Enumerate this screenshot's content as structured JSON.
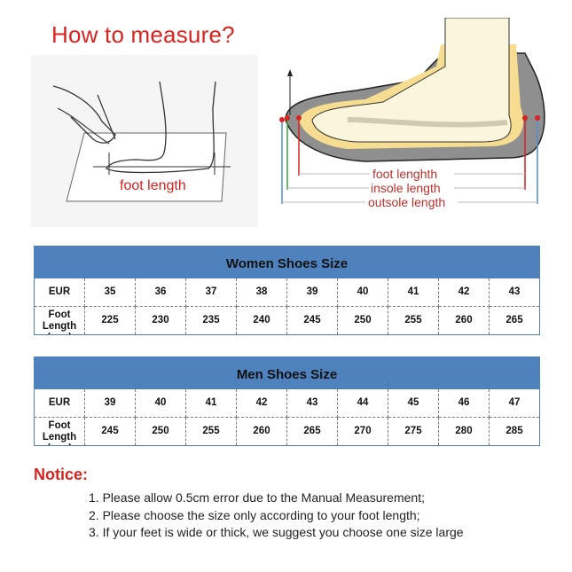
{
  "title": "How to measure?",
  "left_figure": {
    "label": "foot length"
  },
  "right_figure": {
    "labels": [
      "foot lenghth",
      "insole length",
      "outsole length"
    ]
  },
  "colors": {
    "header": "#4f81bd",
    "accent_red": "#d8231f"
  },
  "women": {
    "title": "Women Shoes Size",
    "row1_label": "EUR",
    "row2_label": "Foot Length (mm)",
    "eur": [
      "35",
      "36",
      "37",
      "38",
      "39",
      "40",
      "41",
      "42",
      "43"
    ],
    "mm": [
      "225",
      "230",
      "235",
      "240",
      "245",
      "250",
      "255",
      "260",
      "265"
    ]
  },
  "men": {
    "title": "Men Shoes Size",
    "row1_label": "EUR",
    "row2_label": "Foot Length (mm)",
    "eur": [
      "39",
      "40",
      "41",
      "42",
      "43",
      "44",
      "45",
      "46",
      "47"
    ],
    "mm": [
      "245",
      "250",
      "255",
      "260",
      "265",
      "270",
      "275",
      "280",
      "285"
    ]
  },
  "notice": {
    "title": "Notice:",
    "items": [
      "1. Please allow 0.5cm error due to the Manual Measurement;",
      "2. Please choose the size only according to your foot length;",
      "3. If your feet is wide or thick, we suggest you choose one size large"
    ]
  }
}
